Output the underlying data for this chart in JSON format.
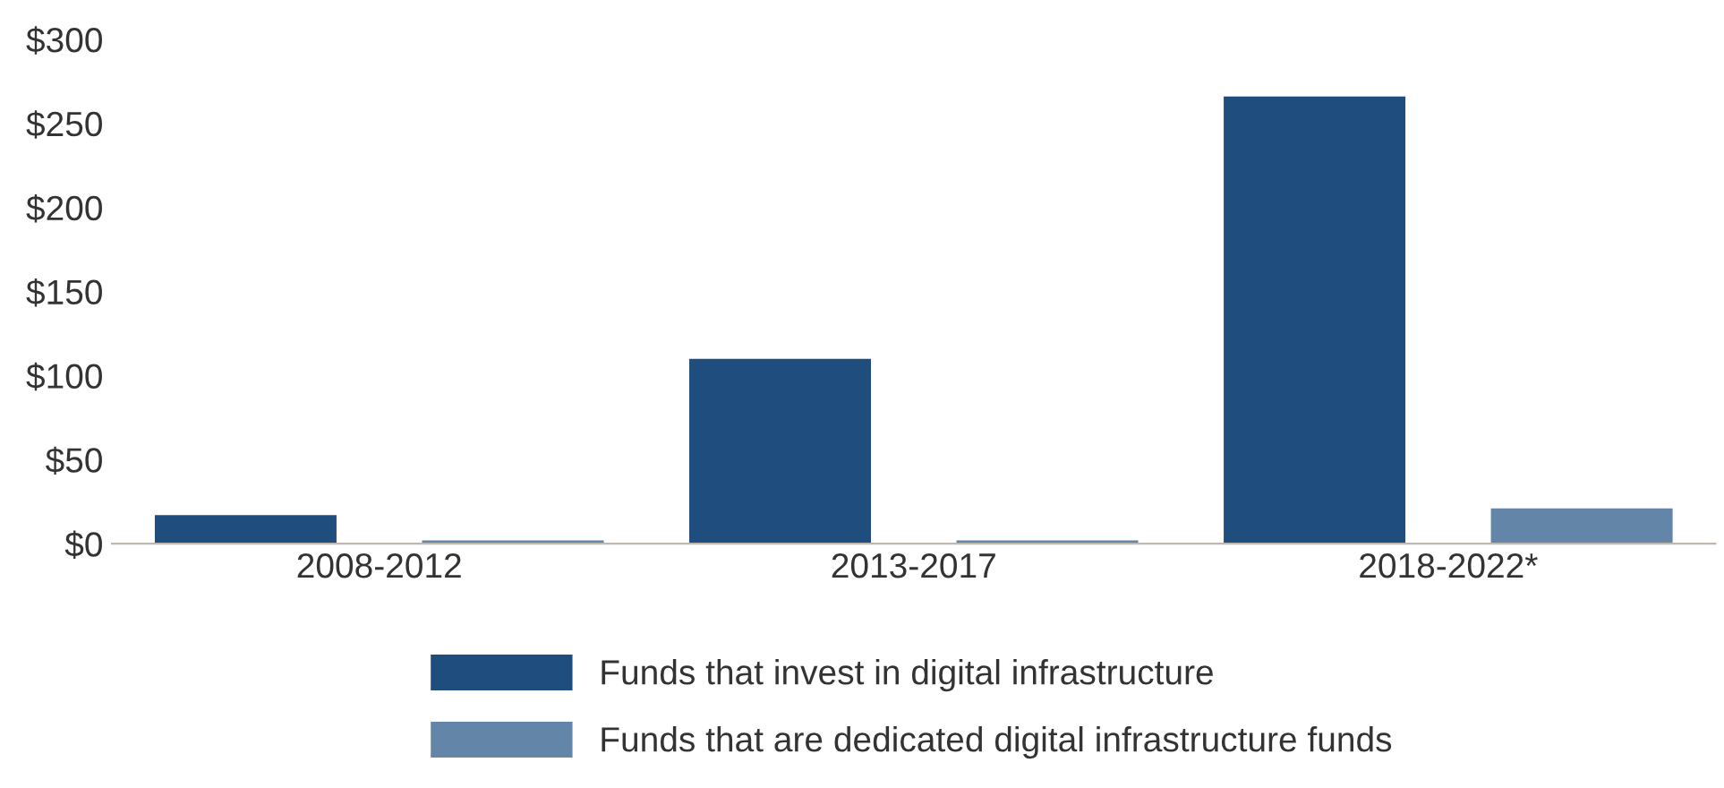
{
  "chart_data": {
    "type": "bar",
    "categories": [
      "2008-2012",
      "2013-2017",
      "2018-2022*"
    ],
    "series": [
      {
        "name": "Funds that invest in digital infrastructure",
        "color": "#1f4e7e",
        "values": [
          17,
          110,
          266
        ]
      },
      {
        "name": "Funds that are dedicated digital infrastructure funds",
        "color": "#6285a8",
        "values": [
          2,
          2,
          21
        ]
      }
    ],
    "ylim": [
      0,
      300
    ],
    "yticks": [
      {
        "value": 0,
        "label": "$0"
      },
      {
        "value": 50,
        "label": "$50"
      },
      {
        "value": 100,
        "label": "$100"
      },
      {
        "value": 150,
        "label": "$150"
      },
      {
        "value": 200,
        "label": "$200"
      },
      {
        "value": 250,
        "label": "$250"
      },
      {
        "value": 300,
        "label": "$300"
      }
    ],
    "grid": false,
    "legend": "bottom"
  }
}
